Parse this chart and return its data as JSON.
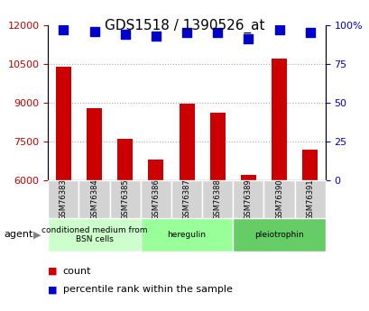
{
  "title": "GDS1518 / 1390526_at",
  "categories": [
    "GSM76383",
    "GSM76384",
    "GSM76385",
    "GSM76386",
    "GSM76387",
    "GSM76388",
    "GSM76389",
    "GSM76390",
    "GSM76391"
  ],
  "count_values": [
    10400,
    8800,
    7600,
    6800,
    8950,
    8600,
    6200,
    10700,
    7200
  ],
  "percentile_values": [
    97,
    96,
    94,
    93,
    95,
    95,
    91,
    97,
    95
  ],
  "ylim_left": [
    6000,
    12000
  ],
  "ylim_right": [
    0,
    100
  ],
  "yticks_left": [
    6000,
    7500,
    9000,
    10500,
    12000
  ],
  "yticks_right": [
    0,
    25,
    50,
    75,
    100
  ],
  "bar_color": "#cc0000",
  "dot_color": "#0000cc",
  "grid_color": "#aaaaaa",
  "bg_color": "#ffffff",
  "plot_bg_color": "#ffffff",
  "agent_groups": [
    {
      "label": "conditioned medium from\nBSN cells",
      "start": 0,
      "end": 3,
      "color": "#ccffcc"
    },
    {
      "label": "heregulin",
      "start": 3,
      "end": 6,
      "color": "#99ff99"
    },
    {
      "label": "pleiotrophin",
      "start": 6,
      "end": 9,
      "color": "#66cc66"
    }
  ],
  "legend_items": [
    {
      "label": "count",
      "color": "#cc0000"
    },
    {
      "label": "percentile rank within the sample",
      "color": "#0000cc"
    }
  ],
  "xlabel": "",
  "ylabel_left": "",
  "ylabel_right": "",
  "tick_color_left": "#cc0000",
  "tick_color_right": "#0000cc",
  "bar_width": 0.5,
  "dot_size": 60
}
